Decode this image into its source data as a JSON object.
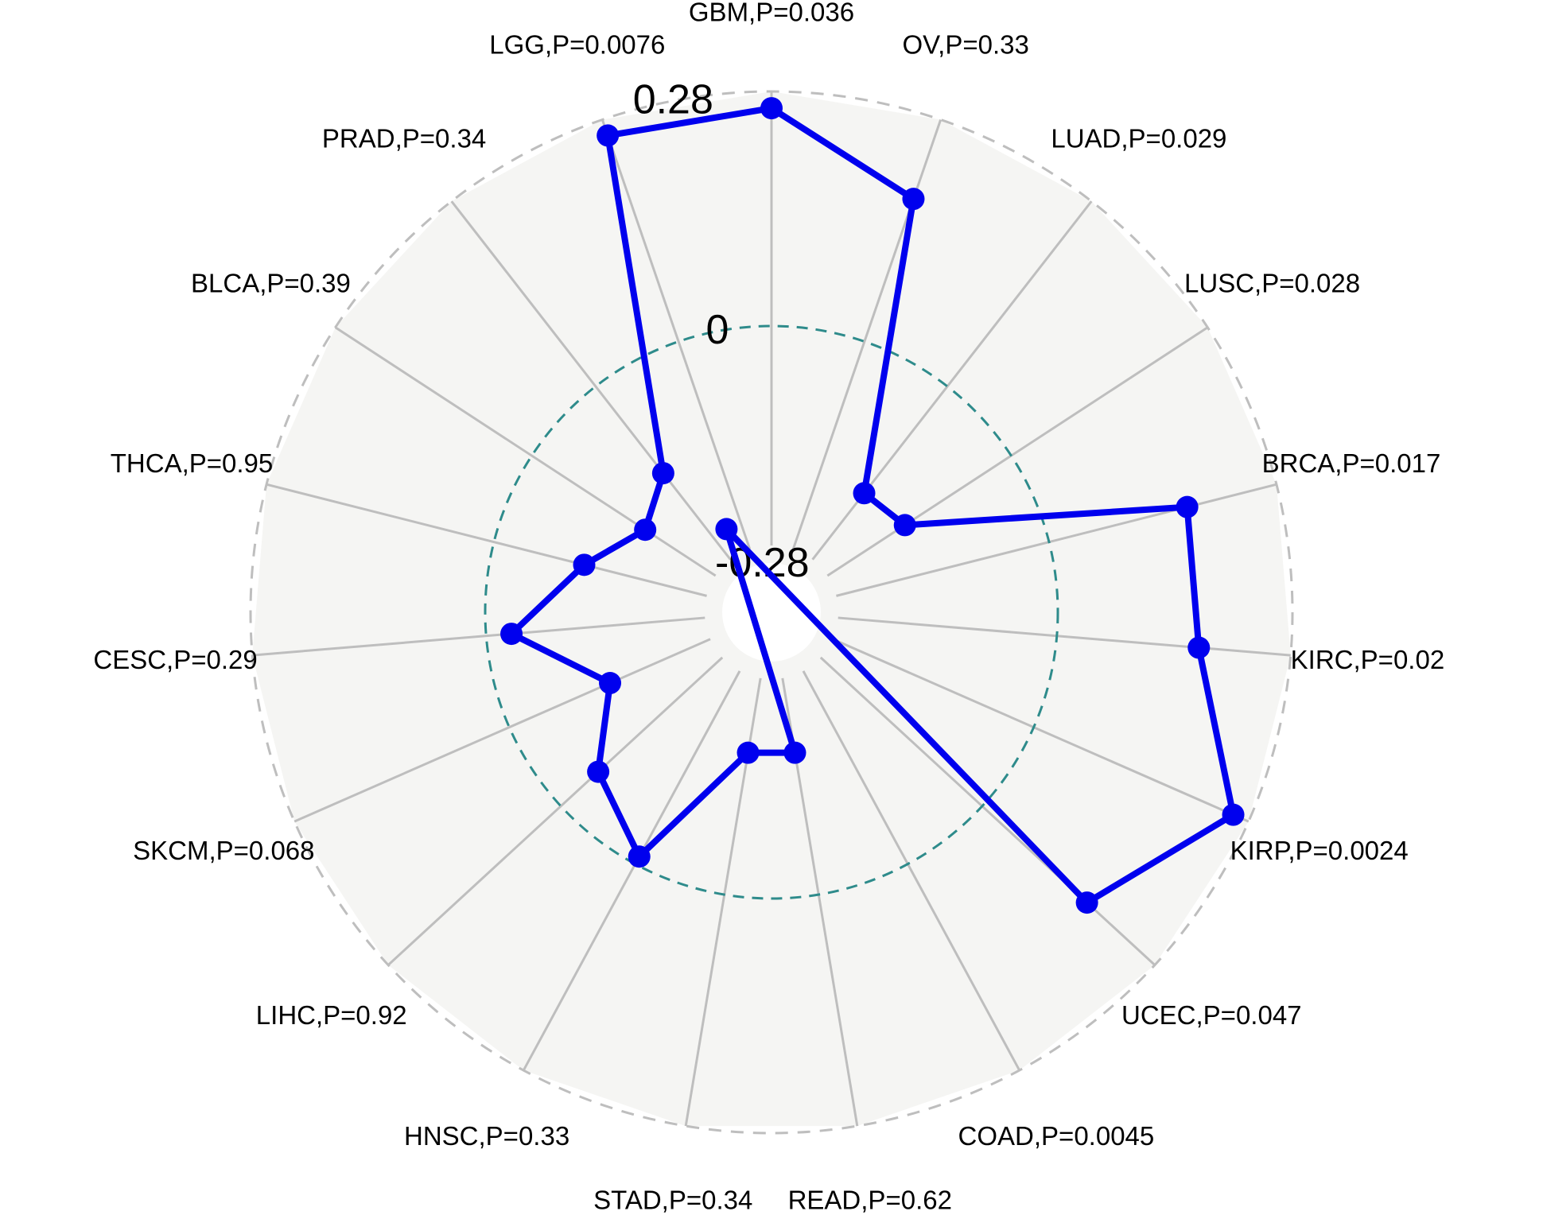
{
  "chart_data": {
    "type": "radar",
    "categories": [
      "GBM,P=0.036",
      "OV,P=0.33",
      "LUAD,P=0.029",
      "LUSC,P=0.028",
      "BRCA,P=0.017",
      "KIRC,P=0.02",
      "KIRP,P=0.0024",
      "UCEC,P=0.047",
      "COAD,P=0.0045",
      "READ,P=0.62",
      "STAD,P=0.34",
      "HNSC,P=0.33",
      "LIHC,P=0.92",
      "SKCM,P=0.068",
      "CESC,P=0.29",
      "THCA,P=0.95",
      "BLCA,P=0.39",
      "PRAD,P=0.34",
      "LGG,P=0.0076"
    ],
    "values": [
      0.26,
      0.18,
      -0.16,
      -0.15,
      0.17,
      0.17,
      0.26,
      0.17,
      -0.45,
      -0.17,
      -0.17,
      -0.01,
      -0.06,
      -0.13,
      -0.03,
      -0.11,
      -0.16,
      -0.13,
      0.26
    ],
    "ticks": [
      {
        "value": -0.28,
        "label": "-0.28"
      },
      {
        "value": 0,
        "label": "0"
      },
      {
        "value": 0.28,
        "label": "0.28"
      }
    ],
    "rlim": [
      -0.28,
      0.28
    ],
    "colors": {
      "series": "#0000ee",
      "background": "#f5f5f3",
      "spoke": "#bebebe",
      "outer_ring": "#bebebe",
      "zero_ring": "#2e8b8b"
    }
  }
}
